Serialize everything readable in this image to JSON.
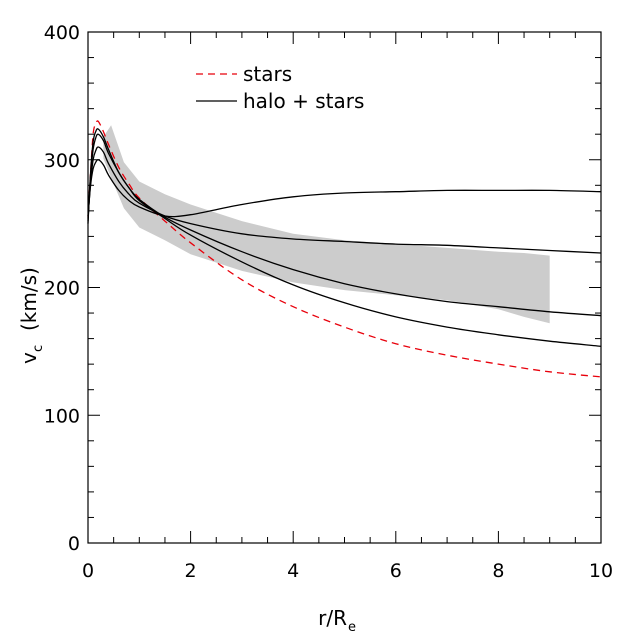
{
  "chart_data": {
    "type": "line",
    "xlabel_main": "r/R",
    "xlabel_sub": "e",
    "ylabel_main": "v",
    "ylabel_sub": "c",
    "ylabel_rest": "(km/s)",
    "xlim": [
      0,
      10
    ],
    "ylim": [
      0,
      400
    ],
    "x_ticks": [
      "0",
      "2",
      "4",
      "6",
      "8",
      "10"
    ],
    "y_ticks": [
      "0",
      "100",
      "200",
      "300",
      "400"
    ],
    "grid": false,
    "legend_position": "top-left",
    "legend": [
      {
        "label": "stars",
        "style": "dashed",
        "color": "#e8000b"
      },
      {
        "label": "halo + stars",
        "style": "solid",
        "color": "#000000"
      }
    ],
    "shaded_band": {
      "color": "#cccccc",
      "x": [
        0.3,
        0.45,
        0.7,
        1.0,
        1.5,
        2.0,
        3.0,
        4.0,
        5.0,
        6.0,
        7.0,
        8.0,
        8.5,
        9.0
      ],
      "upper": [
        318,
        327,
        298,
        283,
        273,
        265,
        252,
        242,
        237,
        234,
        231,
        228,
        227,
        225
      ],
      "lower": [
        301,
        286,
        262,
        247,
        237,
        226,
        213,
        204,
        198,
        194,
        190,
        183,
        177,
        172
      ]
    },
    "series": [
      {
        "style": "dashed",
        "color": "#e8000b",
        "x": [
          0.0,
          0.05,
          0.1,
          0.15,
          0.2,
          0.3,
          0.4,
          0.6,
          0.8,
          1.0,
          1.5,
          2.0,
          3.0,
          4.0,
          5.0,
          6.0,
          7.0,
          8.0,
          9.0,
          10.0
        ],
        "y": [
          255,
          290,
          320,
          328,
          330,
          322,
          312,
          294,
          281,
          270,
          252,
          235,
          206,
          185,
          169,
          156,
          147,
          140,
          134,
          130
        ]
      },
      {
        "style": "solid",
        "color": "#000000",
        "x": [
          0.0,
          0.05,
          0.1,
          0.15,
          0.2,
          0.3,
          0.4,
          0.6,
          0.8,
          1.0,
          1.5,
          2.0,
          3.0,
          4.0,
          5.0,
          6.0,
          7.0,
          8.0,
          9.0,
          10.0
        ],
        "y": [
          250,
          290,
          314,
          322,
          324,
          318,
          308,
          290,
          278,
          268,
          254,
          241,
          220,
          202,
          188,
          177,
          169,
          163,
          158,
          154
        ]
      },
      {
        "style": "solid",
        "color": "#000000",
        "x": [
          0.0,
          0.05,
          0.1,
          0.15,
          0.2,
          0.3,
          0.4,
          0.6,
          0.8,
          1.0,
          1.5,
          2.0,
          3.0,
          4.0,
          5.0,
          6.0,
          7.0,
          8.0,
          9.0,
          10.0
        ],
        "y": [
          252,
          288,
          308,
          317,
          320,
          315,
          305,
          290,
          278,
          269,
          255,
          245,
          228,
          214,
          203,
          195,
          189,
          185,
          181,
          178
        ]
      },
      {
        "style": "solid",
        "color": "#000000",
        "x": [
          0.0,
          0.05,
          0.1,
          0.15,
          0.2,
          0.3,
          0.4,
          0.6,
          0.8,
          1.0,
          1.5,
          2.0,
          3.0,
          4.0,
          5.0,
          6.0,
          7.0,
          8.0,
          9.0,
          10.0
        ],
        "y": [
          254,
          282,
          300,
          307,
          310,
          306,
          297,
          283,
          273,
          266,
          256,
          250,
          242,
          238,
          236,
          234,
          233,
          231,
          229,
          227
        ]
      },
      {
        "style": "solid",
        "color": "#000000",
        "x": [
          0.0,
          0.05,
          0.1,
          0.15,
          0.2,
          0.3,
          0.4,
          0.6,
          0.8,
          1.0,
          1.5,
          2.0,
          3.0,
          4.0,
          5.0,
          6.0,
          7.0,
          8.0,
          9.0,
          10.0
        ],
        "y": [
          256,
          280,
          293,
          298,
          300,
          296,
          288,
          276,
          268,
          263,
          256,
          257,
          265,
          271,
          274,
          275,
          276,
          276,
          276,
          275
        ]
      }
    ]
  }
}
